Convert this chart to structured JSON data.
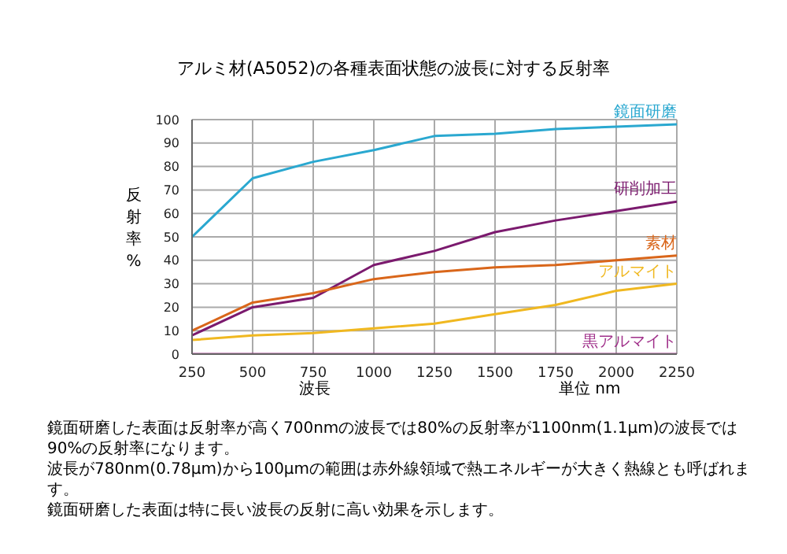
{
  "chart_data": {
    "type": "line",
    "title": "アルミ材(A5052)の各種表面状態の波長に対する反射率",
    "xlabel": "波長",
    "ylabel": "反射率%",
    "x": [
      250,
      500,
      750,
      1000,
      1250,
      1500,
      1750,
      2000,
      2250
    ],
    "series": [
      {
        "name": "鏡面研磨",
        "color": "#2aa8d0",
        "values": [
          50,
          75,
          82,
          87,
          93,
          94,
          96,
          97,
          98
        ]
      },
      {
        "name": "研削加工",
        "color": "#7b1a6e",
        "values": [
          8,
          20,
          24,
          38,
          44,
          52,
          57,
          61,
          65
        ]
      },
      {
        "name": "素材",
        "color": "#d9661a",
        "values": [
          10,
          22,
          26,
          32,
          35,
          37,
          38,
          40,
          42
        ]
      },
      {
        "name": "アルマイト",
        "color": "#f0b820",
        "values": [
          6,
          8,
          9,
          11,
          13,
          17,
          21,
          27,
          30
        ]
      },
      {
        "name": "黒アルマイト",
        "color": "#a0308a",
        "values": [
          0,
          0,
          0,
          0,
          0,
          0,
          0,
          0,
          0
        ]
      }
    ],
    "xlim": [
      250,
      2250
    ],
    "xticks": [
      250,
      500,
      750,
      1000,
      1250,
      1500,
      1750,
      2000,
      2250
    ],
    "ylim": [
      0,
      100
    ],
    "yticks": [
      0,
      10,
      20,
      30,
      40,
      50,
      60,
      70,
      80,
      90,
      100
    ],
    "grid": true,
    "marker": "none",
    "line_style": "solid",
    "legend": false,
    "annotations": [
      "単位 nm",
      "鏡面研磨した表面は反射率が高く700nmの波長では80%の反射率が1100nm(1.1μm)の波長では90%の反射率になります。",
      "波長が780nm(0.78μm)から100μmの範囲は赤外線領域で熱エネルギーが大きく熱線とも呼ばれます。",
      "鏡面研磨した表面は特に長い波長の反射に高い効果を示します。"
    ]
  }
}
